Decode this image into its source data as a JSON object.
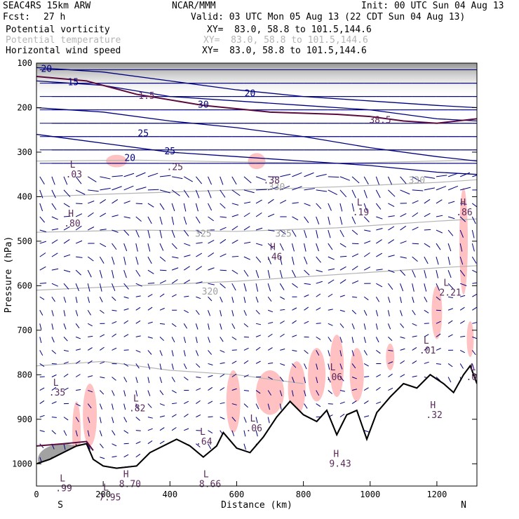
{
  "header": {
    "model": "SEAC4RS 15km ARW",
    "org": "NCAR/MMM",
    "init": "Init: 00 UTC Sun 04 Aug 13",
    "fcst_label": "Fcst:",
    "fcst_value": "27 h",
    "valid": "Valid: 03 UTC Mon 05 Aug 13 (22 CDT Sun 04 Aug 13)",
    "fields": [
      {
        "name": "Potential vorticity",
        "xy": "XY=  83.0, 58.8 to 101.5,144.6",
        "color": "#000000"
      },
      {
        "name": "Potential temperature",
        "xy": "XY=  83.0, 58.8 to 101.5,144.6",
        "color": "#b4b4b4"
      },
      {
        "name": "Horizontal wind speed",
        "xy": "XY=  83.0, 58.8 to 101.5,144.6",
        "color": "#00007f"
      }
    ]
  },
  "chart_data": {
    "type": "vertical cross-section",
    "xlabel": "Distance (km)",
    "ylabel": "Pressure (hPa)",
    "xlim": [
      0,
      1320
    ],
    "ylim": [
      1050,
      100
    ],
    "x_ticks": [
      0,
      200,
      400,
      600,
      800,
      1000,
      1200
    ],
    "y_ticks": [
      100,
      200,
      300,
      400,
      500,
      600,
      700,
      800,
      900,
      1000
    ],
    "x_end_labels": {
      "left": "S",
      "right": "N"
    },
    "theta_contours": [
      {
        "label": "330",
        "x": 720,
        "p": 385
      },
      {
        "label": "325",
        "x": 500,
        "p": 490
      },
      {
        "label": "325",
        "x": 740,
        "p": 490
      },
      {
        "label": "320",
        "x": 520,
        "p": 620
      },
      {
        "label": "330",
        "x": 1140,
        "p": 370
      }
    ],
    "wind_contours": [
      {
        "label": "20",
        "x": 280,
        "p": 320
      },
      {
        "label": "25",
        "x": 320,
        "p": 265
      },
      {
        "label": "30",
        "x": 500,
        "p": 200
      },
      {
        "label": "20",
        "x": 640,
        "p": 175
      },
      {
        "label": "25",
        "x": 400,
        "p": 305
      },
      {
        "label": "15",
        "x": 110,
        "p": 150
      },
      {
        "label": "20",
        "x": 30,
        "p": 120
      }
    ],
    "pv_labels": [
      {
        "label": "1.5",
        "x": 330,
        "p": 180
      },
      {
        "label": "38.5",
        "x": 1030,
        "p": 235
      }
    ],
    "extrema": [
      {
        "type": "L",
        "value": ".03",
        "x": 100,
        "p": 335
      },
      {
        "type": "H",
        "value": ".80",
        "x": 95,
        "p": 445
      },
      {
        "type": ".25",
        "value": "",
        "x": 390,
        "p": 340
      },
      {
        "type": ".38",
        "value": "",
        "x": 680,
        "p": 370
      },
      {
        "type": "L",
        "value": ".19",
        "x": 960,
        "p": 420
      },
      {
        "type": "H",
        "value": ".86",
        "x": 1270,
        "p": 420
      },
      {
        "type": "H",
        "value": ".46",
        "x": 700,
        "p": 520
      },
      {
        "type": "L",
        "value": "2.21",
        "x": 1220,
        "p": 600
      },
      {
        "type": "L",
        "value": ".01",
        "x": 1160,
        "p": 730
      },
      {
        "type": "L",
        "value": ".06",
        "x": 880,
        "p": 790
      },
      {
        "type": "L",
        "value": ".0",
        "x": 1300,
        "p": 790
      },
      {
        "type": "L",
        "value": ".35",
        "x": 50,
        "p": 825
      },
      {
        "type": "L",
        "value": ".82",
        "x": 290,
        "p": 860
      },
      {
        "type": "H",
        "value": ".32",
        "x": 1180,
        "p": 875
      },
      {
        "type": "L",
        "value": ".06",
        "x": 640,
        "p": 905
      },
      {
        "type": "L",
        "value": ".64",
        "x": 490,
        "p": 935
      },
      {
        "type": "H",
        "value": "9.43",
        "x": 890,
        "p": 985
      },
      {
        "type": "L",
        "value": "8.66",
        "x": 500,
        "p": 1030
      },
      {
        "type": "H",
        "value": "8.70",
        "x": 260,
        "p": 1030
      },
      {
        "type": "L",
        "value": ".99",
        "x": 70,
        "p": 1040
      },
      {
        "type": "L",
        "value": "7.95",
        "x": 200,
        "p": 1060
      }
    ],
    "terrain": [
      [
        0,
        1000
      ],
      [
        40,
        990
      ],
      [
        80,
        975
      ],
      [
        120,
        960
      ],
      [
        150,
        955
      ],
      [
        170,
        990
      ],
      [
        200,
        1005
      ],
      [
        240,
        1010
      ],
      [
        300,
        1005
      ],
      [
        340,
        975
      ],
      [
        380,
        960
      ],
      [
        420,
        945
      ],
      [
        460,
        960
      ],
      [
        500,
        985
      ],
      [
        540,
        960
      ],
      [
        560,
        930
      ],
      [
        600,
        965
      ],
      [
        640,
        975
      ],
      [
        680,
        940
      ],
      [
        720,
        895
      ],
      [
        760,
        860
      ],
      [
        800,
        890
      ],
      [
        840,
        905
      ],
      [
        870,
        880
      ],
      [
        900,
        935
      ],
      [
        930,
        890
      ],
      [
        960,
        880
      ],
      [
        990,
        945
      ],
      [
        1020,
        885
      ],
      [
        1060,
        850
      ],
      [
        1100,
        820
      ],
      [
        1140,
        830
      ],
      [
        1180,
        800
      ],
      [
        1220,
        820
      ],
      [
        1250,
        840
      ],
      [
        1280,
        800
      ],
      [
        1300,
        780
      ],
      [
        1320,
        820
      ]
    ]
  }
}
